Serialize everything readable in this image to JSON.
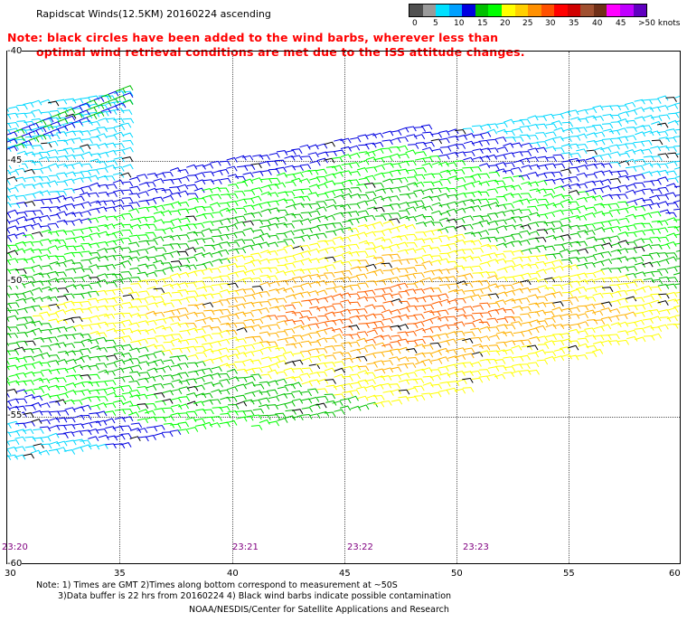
{
  "title": "Rapidscat Winds(12.5KM) 20160224 ascending",
  "note_line1": "Note: black circles have been added to the wind barbs, wherever less than",
  "note_line2": "optimal wind retrieval conditions are met due to the ISS attitude changes.",
  "colorbar": {
    "colors": [
      "#505050",
      "#9a9a9a",
      "#00e0ff",
      "#00a0ff",
      "#0000e0",
      "#00c000",
      "#00ff00",
      "#ffff00",
      "#ffd000",
      "#ff9000",
      "#ff5000",
      "#ff0000",
      "#d00000",
      "#a05030",
      "#703018",
      "#ff00ff",
      "#c000ff",
      "#6000c0"
    ],
    "labels": [
      "0",
      "5",
      "10",
      "15",
      "20",
      "25",
      "30",
      "35",
      "40",
      "45",
      ">50 knots"
    ]
  },
  "lat_labels": [
    "-40",
    "-45",
    "-50",
    "-55",
    "-60"
  ],
  "lon_labels": [
    "30",
    "35",
    "40",
    "45",
    "50",
    "55",
    "60"
  ],
  "time_labels": [
    "23:20",
    "23:21",
    "23:22",
    "23:23"
  ],
  "footer_line1": "Note: 1) Times are GMT 2)Times along bottom correspond to measurement at ~50S",
  "footer_line2": "3)Data buffer is 22 hrs from 20160224 4) Black wind barbs indicate possible contamination",
  "credit": "NOAA/NESDIS/Center for Satellite Applications and Research"
}
